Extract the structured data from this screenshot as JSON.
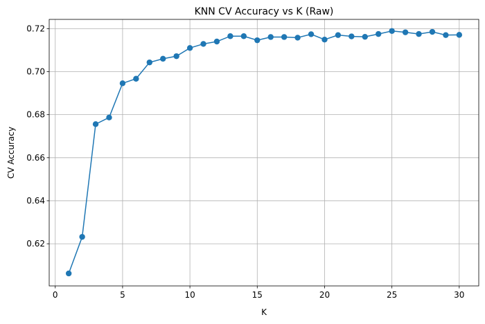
{
  "chart_data": {
    "type": "line",
    "title": "KNN CV Accuracy vs K (Raw)",
    "xlabel": "K",
    "ylabel": "CV Accuracy",
    "xlim": [
      -0.45,
      31.45
    ],
    "ylim": [
      0.6004,
      0.7243
    ],
    "xticks": [
      0,
      5,
      10,
      15,
      20,
      25,
      30
    ],
    "yticks": [
      0.62,
      0.64,
      0.66,
      0.68,
      0.7,
      0.72
    ],
    "xtick_labels": [
      "0",
      "5",
      "10",
      "15",
      "20",
      "25",
      "30"
    ],
    "ytick_labels": [
      "0.62",
      "0.64",
      "0.66",
      "0.68",
      "0.70",
      "0.72"
    ],
    "grid": true,
    "color": "#1f77b4",
    "series": [
      {
        "x": [
          1,
          2,
          3,
          4,
          5,
          6,
          7,
          8,
          9,
          10,
          11,
          12,
          13,
          14,
          15,
          16,
          17,
          18,
          19,
          20,
          21,
          22,
          23,
          24,
          25,
          26,
          27,
          28,
          29,
          30
        ],
        "values": [
          0.6062,
          0.6232,
          0.6756,
          0.6787,
          0.6946,
          0.6967,
          0.7043,
          0.706,
          0.7072,
          0.711,
          0.7129,
          0.714,
          0.7165,
          0.7165,
          0.7146,
          0.7161,
          0.7161,
          0.7158,
          0.7174,
          0.7149,
          0.717,
          0.7164,
          0.7162,
          0.7175,
          0.7189,
          0.7183,
          0.7175,
          0.7185,
          0.717,
          0.7171
        ]
      }
    ]
  }
}
